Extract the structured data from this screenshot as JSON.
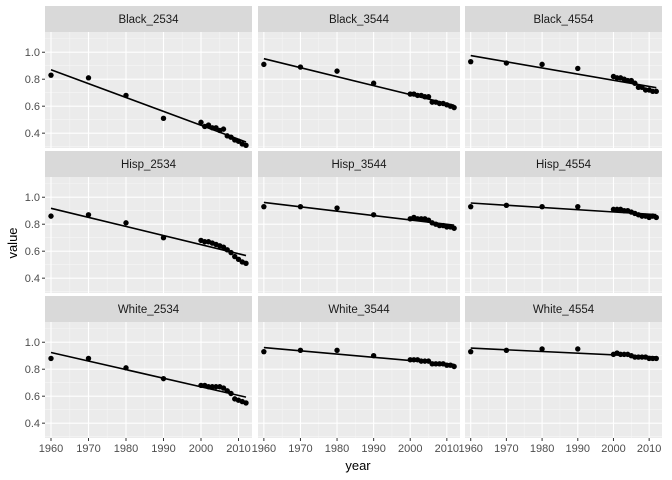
{
  "chart_data": {
    "type": "scatter",
    "layout": "facet-grid 3x3",
    "xlabel": "year",
    "ylabel": "value",
    "xlim": [
      1958.4,
      2013.6
    ],
    "ylim": [
      0.29,
      1.15
    ],
    "x_ticks": [
      1960,
      1970,
      1980,
      1990,
      2000,
      2010
    ],
    "x_minor_ticks": [
      1965,
      1975,
      1985,
      1995,
      2005
    ],
    "y_ticks": [
      0.4,
      0.6,
      0.8,
      1.0
    ],
    "y_tick_labels": [
      "0.4",
      "0.6",
      "0.8",
      "1.0"
    ],
    "y_minor_ticks": [
      0.3,
      0.5,
      0.7,
      0.9,
      1.1
    ],
    "grid": true,
    "trend": "linear fit per panel",
    "colors": {
      "panel_bg": "#ebebeb",
      "strip_bg": "#d9d9d9",
      "grid_major": "#ffffff",
      "grid_minor": "#f5f5f5",
      "points": "#000000",
      "fit_line": "#000000"
    },
    "panels": [
      {
        "label": "Black_2534",
        "x": [
          1960,
          1970,
          1980,
          1990,
          2000,
          2001,
          2002,
          2003,
          2004,
          2005,
          2006,
          2007,
          2008,
          2009,
          2010,
          2011,
          2012
        ],
        "y": [
          0.83,
          0.81,
          0.68,
          0.51,
          0.48,
          0.45,
          0.46,
          0.44,
          0.44,
          0.42,
          0.43,
          0.38,
          0.37,
          0.35,
          0.34,
          0.32,
          0.31
        ]
      },
      {
        "label": "Black_3544",
        "x": [
          1960,
          1970,
          1980,
          1990,
          2000,
          2001,
          2002,
          2003,
          2004,
          2005,
          2006,
          2007,
          2008,
          2009,
          2010,
          2011,
          2012
        ],
        "y": [
          0.91,
          0.89,
          0.86,
          0.77,
          0.69,
          0.69,
          0.68,
          0.68,
          0.67,
          0.67,
          0.63,
          0.63,
          0.62,
          0.62,
          0.61,
          0.6,
          0.59
        ]
      },
      {
        "label": "Black_4554",
        "x": [
          1960,
          1970,
          1980,
          1990,
          2000,
          2001,
          2002,
          2003,
          2004,
          2005,
          2006,
          2007,
          2008,
          2009,
          2010,
          2011,
          2012
        ],
        "y": [
          0.93,
          0.92,
          0.91,
          0.88,
          0.82,
          0.81,
          0.81,
          0.8,
          0.79,
          0.79,
          0.77,
          0.74,
          0.74,
          0.72,
          0.72,
          0.71,
          0.71
        ]
      },
      {
        "label": "Hisp_2534",
        "x": [
          1960,
          1970,
          1980,
          1990,
          2000,
          2001,
          2002,
          2003,
          2004,
          2005,
          2006,
          2007,
          2008,
          2009,
          2010,
          2011,
          2012
        ],
        "y": [
          0.86,
          0.87,
          0.81,
          0.7,
          0.68,
          0.67,
          0.67,
          0.66,
          0.65,
          0.64,
          0.63,
          0.61,
          0.59,
          0.56,
          0.54,
          0.52,
          0.51
        ]
      },
      {
        "label": "Hisp_3544",
        "x": [
          1960,
          1970,
          1980,
          1990,
          2000,
          2001,
          2002,
          2003,
          2004,
          2005,
          2006,
          2007,
          2008,
          2009,
          2010,
          2011,
          2012
        ],
        "y": [
          0.93,
          0.93,
          0.92,
          0.87,
          0.84,
          0.85,
          0.84,
          0.84,
          0.84,
          0.83,
          0.81,
          0.8,
          0.79,
          0.79,
          0.78,
          0.78,
          0.77
        ]
      },
      {
        "label": "Hisp_4554",
        "x": [
          1960,
          1970,
          1980,
          1990,
          2000,
          2001,
          2002,
          2003,
          2004,
          2005,
          2006,
          2007,
          2008,
          2009,
          2010,
          2011,
          2012
        ],
        "y": [
          0.93,
          0.94,
          0.93,
          0.93,
          0.91,
          0.91,
          0.91,
          0.9,
          0.9,
          0.89,
          0.88,
          0.87,
          0.86,
          0.86,
          0.85,
          0.86,
          0.85
        ]
      },
      {
        "label": "White_2534",
        "x": [
          1960,
          1970,
          1980,
          1990,
          2000,
          2001,
          2002,
          2003,
          2004,
          2005,
          2006,
          2007,
          2008,
          2009,
          2010,
          2011,
          2012
        ],
        "y": [
          0.88,
          0.88,
          0.81,
          0.73,
          0.68,
          0.68,
          0.67,
          0.67,
          0.67,
          0.67,
          0.66,
          0.64,
          0.62,
          0.58,
          0.57,
          0.56,
          0.55
        ]
      },
      {
        "label": "White_3544",
        "x": [
          1960,
          1970,
          1980,
          1990,
          2000,
          2001,
          2002,
          2003,
          2004,
          2005,
          2006,
          2007,
          2008,
          2009,
          2010,
          2011,
          2012
        ],
        "y": [
          0.93,
          0.94,
          0.94,
          0.9,
          0.87,
          0.87,
          0.87,
          0.86,
          0.86,
          0.86,
          0.84,
          0.84,
          0.84,
          0.84,
          0.83,
          0.83,
          0.82
        ]
      },
      {
        "label": "White_4554",
        "x": [
          1960,
          1970,
          1980,
          1990,
          2000,
          2001,
          2002,
          2003,
          2004,
          2005,
          2006,
          2007,
          2008,
          2009,
          2010,
          2011,
          2012
        ],
        "y": [
          0.93,
          0.94,
          0.95,
          0.95,
          0.91,
          0.92,
          0.91,
          0.91,
          0.91,
          0.9,
          0.89,
          0.89,
          0.89,
          0.89,
          0.88,
          0.88,
          0.88
        ]
      }
    ]
  }
}
